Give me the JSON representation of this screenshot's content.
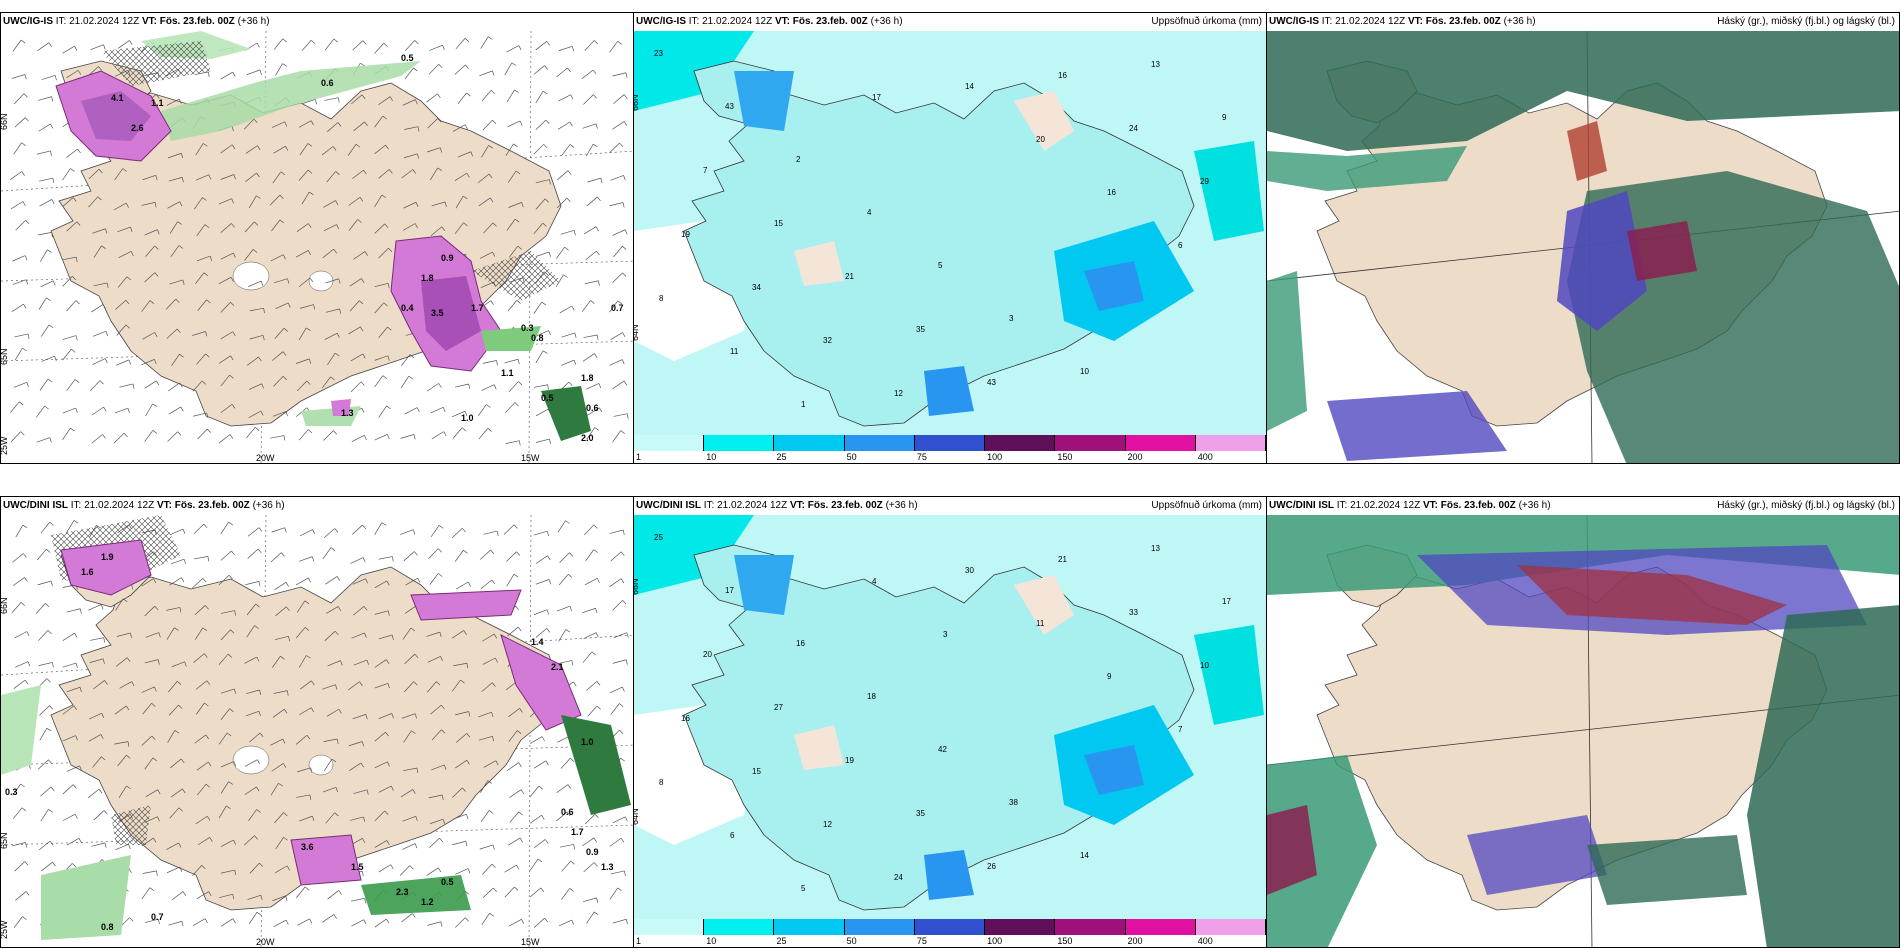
{
  "panels": [
    {
      "model": "UWC/IG-IS",
      "it": "IT: 21.02.2024 12Z",
      "vt_label": "VT:",
      "vt": "Fös. 23.feb. 00Z",
      "lead": "(+36 h)",
      "right": ""
    },
    {
      "model": "UWC/IG-IS",
      "it": "IT: 21.02.2024 12Z",
      "vt_label": "VT:",
      "vt": "Fös. 23.feb. 00Z",
      "lead": "(+36 h)",
      "right": "Uppsöfnuð úrkoma (mm)"
    },
    {
      "model": "UWC/IG-IS",
      "it": "IT: 21.02.2024 12Z",
      "vt_label": "VT:",
      "vt": "Fös. 23.feb. 00Z",
      "lead": "(+36 h)",
      "right": "Háský (gr.), miðský (fj.bl.) og lágský (bl.)"
    },
    {
      "model": "UWC/DINI ISL",
      "it": "IT: 21.02.2024 12Z",
      "vt_label": "VT:",
      "vt": "Fös. 23.feb. 00Z",
      "lead": "(+36 h)",
      "right": ""
    },
    {
      "model": "UWC/DINI ISL",
      "it": "IT: 21.02.2024 12Z",
      "vt_label": "VT:",
      "vt": "Fös. 23.feb. 00Z",
      "lead": "(+36 h)",
      "right": "Uppsöfnuð úrkoma (mm)"
    },
    {
      "model": "UWC/DINI ISL",
      "it": "IT: 21.02.2024 12Z",
      "vt_label": "VT:",
      "vt": "Fös. 23.feb. 00Z",
      "lead": "(+36 h)",
      "right": "Háský (gr.), miðský (fj.bl.) og lágský (bl.)"
    }
  ],
  "axis_labels": {
    "lat66": "66N",
    "lat65": "65N",
    "lat64": "64N",
    "lon20": "20W",
    "lon15": "15W",
    "lon25": "25W"
  },
  "colorbar": {
    "ticks": [
      "1",
      "10",
      "25",
      "50",
      "75",
      "100",
      "150",
      "200",
      "400"
    ],
    "colors": [
      "#c8fafa",
      "#00f0f0",
      "#00c8f0",
      "#2896f0",
      "#3050d0",
      "#60105a",
      "#a0107a",
      "#e010a0",
      "#f0a0e8"
    ]
  },
  "precip_top": [
    "23",
    "43",
    "2",
    "4",
    "5",
    "3",
    "10",
    "13",
    "9",
    "7",
    "15",
    "21",
    "35",
    "43",
    "16",
    "24",
    "29",
    "19",
    "34",
    "32",
    "12",
    "14",
    "20",
    "16",
    "6",
    "8",
    "11",
    "1",
    "17"
  ],
  "precip_bottom": [
    "25",
    "17",
    "16",
    "18",
    "42",
    "38",
    "14",
    "13",
    "17",
    "20",
    "27",
    "19",
    "35",
    "26",
    "21",
    "33",
    "10",
    "16",
    "15",
    "12",
    "24",
    "30",
    "11",
    "9",
    "7",
    "8",
    "6",
    "5",
    "4",
    "3"
  ],
  "wind_top_labels": [
    "0.5",
    "0.6",
    "4.1",
    "2.6",
    "1.1",
    "1.8",
    "0.9",
    "0.4",
    "3.5",
    "1.7",
    "0.3",
    "0.8",
    "0.7",
    "1.1",
    "1.3",
    "0.5",
    "1.8",
    "0.6",
    "2.0",
    "1.0"
  ],
  "wind_bottom_labels": [
    "1.6",
    "1.9",
    "0.3",
    "1.4",
    "2.1",
    "1.0",
    "0.6",
    "1.7",
    "0.9",
    "1.3",
    "0.5",
    "2.3",
    "1.2",
    "0.8",
    "3.6",
    "1.5",
    "0.7"
  ]
}
